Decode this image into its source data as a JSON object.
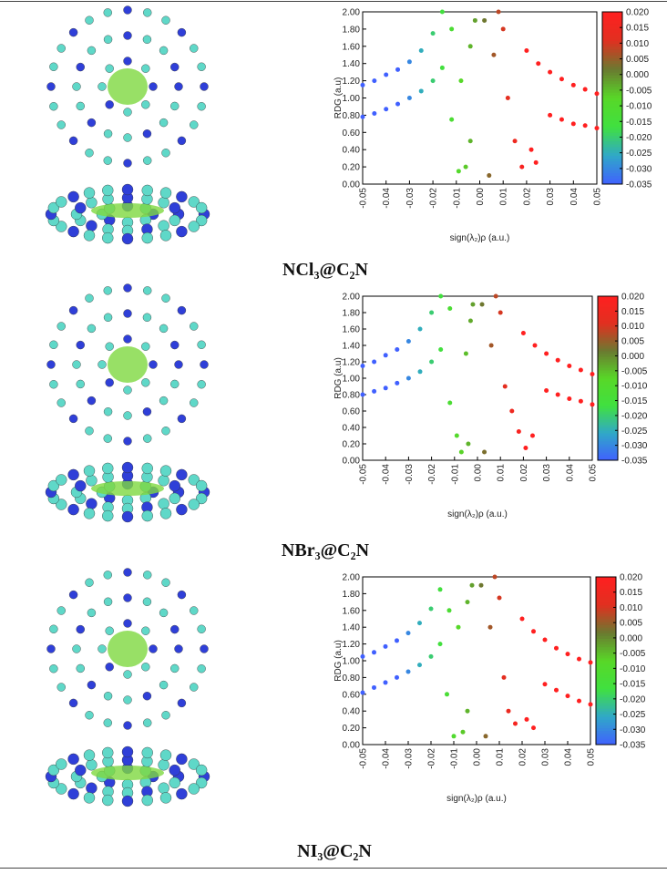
{
  "chart_data": [
    {
      "type": "scatter",
      "title": "NCl₃@C₂N",
      "xlabel": "sign(λ₂)ρ (a.u.)",
      "ylabel": "RDG (a.u)",
      "xlim": [
        -0.05,
        0.05
      ],
      "xticks": [
        -0.05,
        -0.04,
        -0.03,
        -0.02,
        -0.01,
        {
          "value": 0,
          "label": "0.00"
        },
        0.01,
        0.02,
        0.03,
        0.04,
        0.05
      ],
      "ylim": [
        0,
        2
      ],
      "yticks": [
        {
          "value": 0,
          "label": "0.00"
        },
        {
          "value": 0.2,
          "label": "0.20"
        },
        {
          "value": 0.4,
          "label": "0.40"
        },
        {
          "value": 0.6,
          "label": "0.60"
        },
        {
          "value": 0.8,
          "label": "0.80"
        },
        {
          "value": 1,
          "label": "1.00"
        },
        {
          "value": 1.2,
          "label": "1.20"
        },
        {
          "value": 1.4,
          "label": "1.40"
        },
        {
          "value": 1.6,
          "label": "1.60"
        },
        {
          "value": 1.8,
          "label": "1.80"
        },
        {
          "value": 2,
          "label": "2.00"
        }
      ],
      "colorbar": {
        "lim": [
          -0.035,
          0.02
        ],
        "colors": [
          "#4060ff",
          "#30a8c8",
          "#40e040",
          "#58d828",
          "#6a7a30",
          "#e03020",
          "#ff2020"
        ],
        "ticks": [
          {
            "value": 0.02,
            "label": "0.020"
          },
          {
            "value": 0.015,
            "label": "0.015"
          },
          {
            "value": 0.01,
            "label": "0.010"
          },
          {
            "value": 0.005,
            "label": "0.005"
          },
          {
            "value": 0,
            "label": "0.000"
          },
          {
            "value": -0.005,
            "label": "-0.005"
          },
          {
            "value": -0.01,
            "label": "-0.010"
          },
          {
            "value": -0.015,
            "label": "-0.015"
          },
          {
            "value": -0.02,
            "label": "-0.020"
          },
          {
            "value": -0.025,
            "label": "-0.025"
          },
          {
            "value": -0.03,
            "label": "-0.030"
          },
          {
            "value": -0.035,
            "label": "-0.035"
          }
        ]
      },
      "x": [
        -0.05,
        -0.05,
        -0.045,
        -0.045,
        -0.04,
        -0.04,
        -0.035,
        -0.035,
        -0.03,
        -0.03,
        -0.025,
        -0.025,
        -0.02,
        -0.02,
        -0.016,
        -0.016,
        -0.012,
        -0.012,
        -0.009,
        -0.008,
        -0.006,
        -0.004,
        -0.004,
        -0.002,
        0.002,
        0.004,
        0.006,
        0.008,
        0.01,
        0.012,
        0.015,
        0.018,
        0.02,
        0.022,
        0.024,
        0.025,
        0.03,
        0.03,
        0.035,
        0.035,
        0.04,
        0.04,
        0.045,
        0.045,
        0.05,
        0.05
      ],
      "y": [
        1.15,
        0.78,
        1.2,
        0.82,
        1.27,
        0.87,
        1.33,
        0.93,
        1.42,
        1.0,
        1.55,
        1.08,
        1.75,
        1.2,
        2.0,
        1.35,
        1.8,
        0.75,
        0.15,
        1.2,
        0.2,
        1.6,
        0.5,
        1.9,
        1.9,
        0.1,
        1.5,
        2.0,
        1.8,
        1.0,
        0.5,
        0.2,
        1.55,
        0.4,
        0.25,
        1.4,
        1.3,
        0.8,
        1.22,
        0.75,
        1.15,
        0.7,
        1.1,
        0.68,
        1.05,
        0.65
      ]
    },
    {
      "type": "scatter",
      "title": "NBr₃@C₂N",
      "xlabel": "sign(λ₂)ρ (a.u.)",
      "ylabel": "RDG (a.u)",
      "xlim": [
        -0.05,
        0.05
      ],
      "xticks": [
        -0.05,
        -0.04,
        -0.03,
        -0.02,
        -0.01,
        {
          "value": 0,
          "label": "0.00"
        },
        0.01,
        0.02,
        0.03,
        0.04,
        0.05
      ],
      "ylim": [
        0,
        2
      ],
      "yticks": [
        {
          "value": 0,
          "label": "0.00"
        },
        {
          "value": 0.2,
          "label": "0.20"
        },
        {
          "value": 0.4,
          "label": "0.40"
        },
        {
          "value": 0.6,
          "label": "0.60"
        },
        {
          "value": 0.8,
          "label": "0.80"
        },
        {
          "value": 1,
          "label": "1.00"
        },
        {
          "value": 1.2,
          "label": "1.20"
        },
        {
          "value": 1.4,
          "label": "1.40"
        },
        {
          "value": 1.6,
          "label": "1.60"
        },
        {
          "value": 1.8,
          "label": "1.80"
        },
        {
          "value": 2,
          "label": "2.00"
        }
      ],
      "colorbar": {
        "lim": [
          -0.035,
          0.02
        ],
        "colors": [
          "#4060ff",
          "#30a8c8",
          "#40e040",
          "#58d828",
          "#6a7a30",
          "#e03020",
          "#ff2020"
        ],
        "ticks": [
          {
            "value": 0.02,
            "label": "0.020"
          },
          {
            "value": 0.015,
            "label": "0.015"
          },
          {
            "value": 0.01,
            "label": "0.010"
          },
          {
            "value": 0.005,
            "label": "0.005"
          },
          {
            "value": 0,
            "label": "0.000"
          },
          {
            "value": -0.005,
            "label": "-0.005"
          },
          {
            "value": -0.01,
            "label": "-0.010"
          },
          {
            "value": -0.015,
            "label": "-0.015"
          },
          {
            "value": -0.02,
            "label": "-0.020"
          },
          {
            "value": -0.025,
            "label": "-0.025"
          },
          {
            "value": -0.03,
            "label": "-0.030"
          },
          {
            "value": -0.035,
            "label": "-0.035"
          }
        ]
      },
      "x": [
        -0.05,
        -0.05,
        -0.045,
        -0.045,
        -0.04,
        -0.04,
        -0.035,
        -0.035,
        -0.03,
        -0.03,
        -0.025,
        -0.025,
        -0.02,
        -0.02,
        -0.016,
        -0.016,
        -0.012,
        -0.012,
        -0.009,
        -0.007,
        -0.005,
        -0.004,
        -0.003,
        -0.002,
        0.002,
        0.003,
        0.006,
        0.008,
        0.01,
        0.012,
        0.015,
        0.018,
        0.02,
        0.021,
        0.024,
        0.025,
        0.03,
        0.03,
        0.035,
        0.035,
        0.04,
        0.04,
        0.045,
        0.045,
        0.05,
        0.05
      ],
      "y": [
        1.15,
        0.8,
        1.2,
        0.84,
        1.28,
        0.88,
        1.35,
        0.94,
        1.45,
        1.0,
        1.6,
        1.08,
        1.8,
        1.2,
        2.0,
        1.35,
        1.85,
        0.7,
        0.3,
        0.1,
        1.3,
        0.2,
        1.7,
        1.9,
        1.9,
        0.1,
        1.4,
        2.0,
        1.8,
        0.9,
        0.6,
        0.35,
        1.55,
        0.15,
        0.3,
        1.4,
        1.3,
        0.85,
        1.22,
        0.8,
        1.15,
        0.75,
        1.1,
        0.72,
        1.05,
        0.68
      ]
    },
    {
      "type": "scatter",
      "title": "NI₃@C₂N",
      "xlabel": "sign(λ₂)ρ (a.u.)",
      "ylabel": "RDG (a.u)",
      "xlim": [
        -0.05,
        0.05
      ],
      "xticks": [
        -0.05,
        -0.04,
        -0.03,
        -0.02,
        -0.01,
        {
          "value": 0,
          "label": "0.00"
        },
        0.01,
        0.02,
        0.03,
        0.04,
        0.05
      ],
      "ylim": [
        0,
        2
      ],
      "yticks": [
        {
          "value": 0,
          "label": "0.00"
        },
        {
          "value": 0.2,
          "label": "0.20"
        },
        {
          "value": 0.4,
          "label": "0.40"
        },
        {
          "value": 0.6,
          "label": "0.60"
        },
        {
          "value": 0.8,
          "label": "0.80"
        },
        {
          "value": 1,
          "label": "1.00"
        },
        {
          "value": 1.2,
          "label": "1.20"
        },
        {
          "value": 1.4,
          "label": "1.40"
        },
        {
          "value": 1.6,
          "label": "1.60"
        },
        {
          "value": 1.8,
          "label": "1.80"
        },
        {
          "value": 2,
          "label": "2.00"
        }
      ],
      "colorbar": {
        "lim": [
          -0.035,
          0.02
        ],
        "colors": [
          "#4060ff",
          "#30a8c8",
          "#40e040",
          "#58d828",
          "#6a7a30",
          "#e03020",
          "#ff2020"
        ],
        "ticks": [
          {
            "value": 0.02,
            "label": "0.020"
          },
          {
            "value": 0.015,
            "label": "0.015"
          },
          {
            "value": 0.01,
            "label": "0.010"
          },
          {
            "value": 0.005,
            "label": "0.005"
          },
          {
            "value": 0,
            "label": "0.000"
          },
          {
            "value": -0.005,
            "label": "-0.005"
          },
          {
            "value": -0.01,
            "label": "-0.010"
          },
          {
            "value": -0.015,
            "label": "-0.015"
          },
          {
            "value": -0.02,
            "label": "-0.020"
          },
          {
            "value": -0.025,
            "label": "-0.025"
          },
          {
            "value": -0.03,
            "label": "-0.030"
          },
          {
            "value": -0.035,
            "label": "-0.035"
          }
        ]
      },
      "x": [
        -0.05,
        -0.05,
        -0.045,
        -0.045,
        -0.04,
        -0.04,
        -0.035,
        -0.035,
        -0.03,
        -0.03,
        -0.025,
        -0.025,
        -0.02,
        -0.02,
        -0.016,
        -0.016,
        -0.013,
        -0.012,
        -0.01,
        -0.008,
        -0.006,
        -0.004,
        -0.004,
        -0.002,
        0.002,
        0.004,
        0.006,
        0.008,
        0.01,
        0.012,
        0.014,
        0.017,
        0.02,
        0.022,
        0.025,
        0.025,
        0.03,
        0.03,
        0.035,
        0.035,
        0.04,
        0.04,
        0.045,
        0.045,
        0.05,
        0.05
      ],
      "y": [
        1.05,
        0.62,
        1.1,
        0.68,
        1.17,
        0.74,
        1.24,
        0.8,
        1.33,
        0.87,
        1.45,
        0.95,
        1.62,
        1.05,
        1.85,
        1.2,
        0.6,
        1.6,
        0.1,
        1.4,
        0.15,
        1.7,
        0.4,
        1.9,
        1.9,
        0.1,
        1.4,
        2.0,
        1.75,
        0.8,
        0.4,
        0.25,
        1.5,
        0.3,
        0.2,
        1.35,
        1.25,
        0.72,
        1.15,
        0.65,
        1.08,
        0.58,
        1.02,
        0.52,
        0.98,
        0.48
      ]
    }
  ]
}
